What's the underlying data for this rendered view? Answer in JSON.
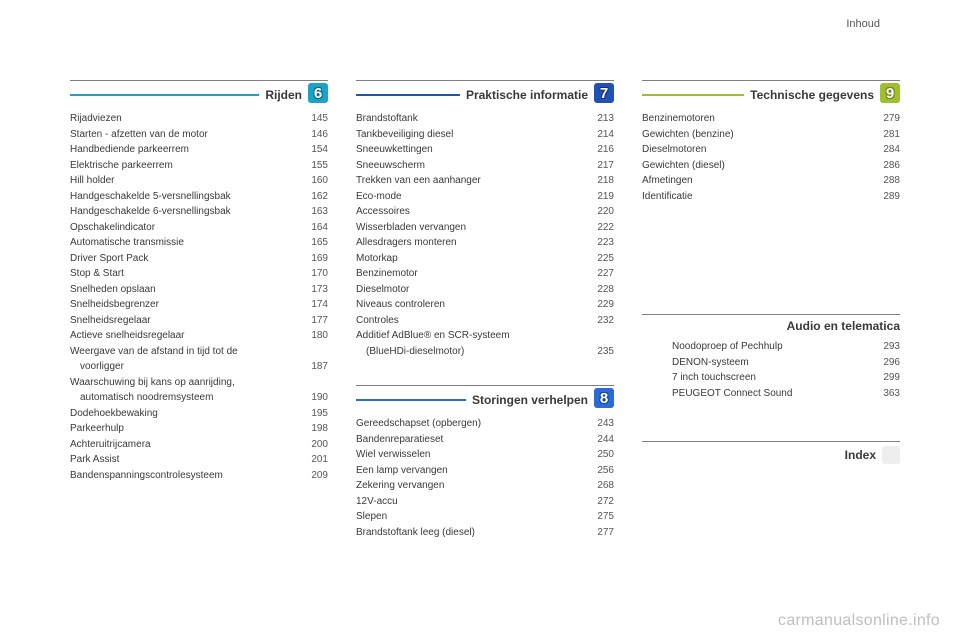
{
  "header": {
    "label": "Inhoud"
  },
  "watermark": "carmanualsonline.info",
  "columns": [
    {
      "sections": [
        {
          "title": "Rijden",
          "number": "6",
          "accent": "#1aa3c7",
          "entries": [
            {
              "label": "Rijadviezen",
              "page": "145"
            },
            {
              "label": "Starten - afzetten van de motor",
              "page": "146"
            },
            {
              "label": "Handbediende parkeerrem",
              "page": "154"
            },
            {
              "label": "Elektrische parkeerrem",
              "page": "155"
            },
            {
              "label": "Hill holder",
              "page": "160"
            },
            {
              "label": "Handgeschakelde 5-versnellingsbak",
              "page": "162"
            },
            {
              "label": "Handgeschakelde 6-versnellingsbak",
              "page": "163"
            },
            {
              "label": "Opschakelindicator",
              "page": "164"
            },
            {
              "label": "Automatische transmissie",
              "page": "165"
            },
            {
              "label": "Driver Sport Pack",
              "page": "169"
            },
            {
              "label": "Stop & Start",
              "page": "170"
            },
            {
              "label": "Snelheden opslaan",
              "page": "173"
            },
            {
              "label": "Snelheidsbegrenzer",
              "page": "174"
            },
            {
              "label": "Snelheidsregelaar",
              "page": "177"
            },
            {
              "label": "Actieve snelheidsregelaar",
              "page": "180"
            },
            {
              "label": "Weergave van de afstand in tijd tot de",
              "page": ""
            },
            {
              "label": "voorligger",
              "page": "187",
              "indent": true
            },
            {
              "label": "Waarschuwing bij kans op aanrijding,",
              "page": ""
            },
            {
              "label": "automatisch noodremsysteem",
              "page": "190",
              "indent": true
            },
            {
              "label": "Dodehoekbewaking",
              "page": "195"
            },
            {
              "label": "Parkeerhulp",
              "page": "198"
            },
            {
              "label": "Achteruitrijcamera",
              "page": "200"
            },
            {
              "label": "Park Assist",
              "page": "201"
            },
            {
              "label": "Bandenspanningscontrolesysteem",
              "page": "209"
            }
          ]
        }
      ]
    },
    {
      "sections": [
        {
          "title": "Praktische informatie",
          "number": "7",
          "accent": "#1f52b5",
          "entries": [
            {
              "label": "Brandstoftank",
              "page": "213"
            },
            {
              "label": "Tankbeveiliging diesel",
              "page": "214"
            },
            {
              "label": "Sneeuwkettingen",
              "page": "216"
            },
            {
              "label": "Sneeuwscherm",
              "page": "217"
            },
            {
              "label": "Trekken van een aanhanger",
              "page": "218"
            },
            {
              "label": "Eco-mode",
              "page": "219"
            },
            {
              "label": "Accessoires",
              "page": "220"
            },
            {
              "label": "Wisserbladen vervangen",
              "page": "222"
            },
            {
              "label": "Allesdragers monteren",
              "page": "223"
            },
            {
              "label": "Motorkap",
              "page": "225"
            },
            {
              "label": "Benzinemotor",
              "page": "227"
            },
            {
              "label": "Dieselmotor",
              "page": "228"
            },
            {
              "label": "Niveaus controleren",
              "page": "229"
            },
            {
              "label": "Controles",
              "page": "232"
            },
            {
              "label": "Additief AdBlue® en SCR-systeem",
              "page": ""
            },
            {
              "label": "(BlueHDi-dieselmotor)",
              "page": "235",
              "indent": true
            }
          ]
        },
        {
          "title": "Storingen verhelpen",
          "number": "8",
          "accent": "#2b6bd9",
          "entries": [
            {
              "label": "Gereedschapset (opbergen)",
              "page": "243"
            },
            {
              "label": "Bandenreparatieset",
              "page": "244"
            },
            {
              "label": "Wiel verwisselen",
              "page": "250"
            },
            {
              "label": "Een lamp vervangen",
              "page": "256"
            },
            {
              "label": "Zekering vervangen",
              "page": "268"
            },
            {
              "label": "12V-accu",
              "page": "272"
            },
            {
              "label": "Slepen",
              "page": "275"
            },
            {
              "label": "Brandstoftank leeg (diesel)",
              "page": "277"
            }
          ]
        }
      ]
    },
    {
      "sections": [
        {
          "title": "Technische gegevens",
          "number": "9",
          "accent": "#9fbf2e",
          "entries": [
            {
              "label": "Benzinemotoren",
              "page": "279"
            },
            {
              "label": "Gewichten (benzine)",
              "page": "281"
            },
            {
              "label": "Dieselmotoren",
              "page": "284"
            },
            {
              "label": "Gewichten (diesel)",
              "page": "286"
            },
            {
              "label": "Afmetingen",
              "page": "288"
            },
            {
              "label": "Identificatie",
              "page": "289"
            }
          ]
        },
        {
          "title": "Audio en telematica",
          "plain": true,
          "entries": [
            {
              "label": "Noodoproep of Pechhulp",
              "page": "293"
            },
            {
              "label": "DENON-systeem",
              "page": "296"
            },
            {
              "label": "7 inch touchscreen",
              "page": "299"
            },
            {
              "label": "PEUGEOT Connect Sound",
              "page": "363"
            }
          ]
        },
        {
          "title": "Index",
          "plain": true,
          "entries": []
        }
      ]
    }
  ]
}
